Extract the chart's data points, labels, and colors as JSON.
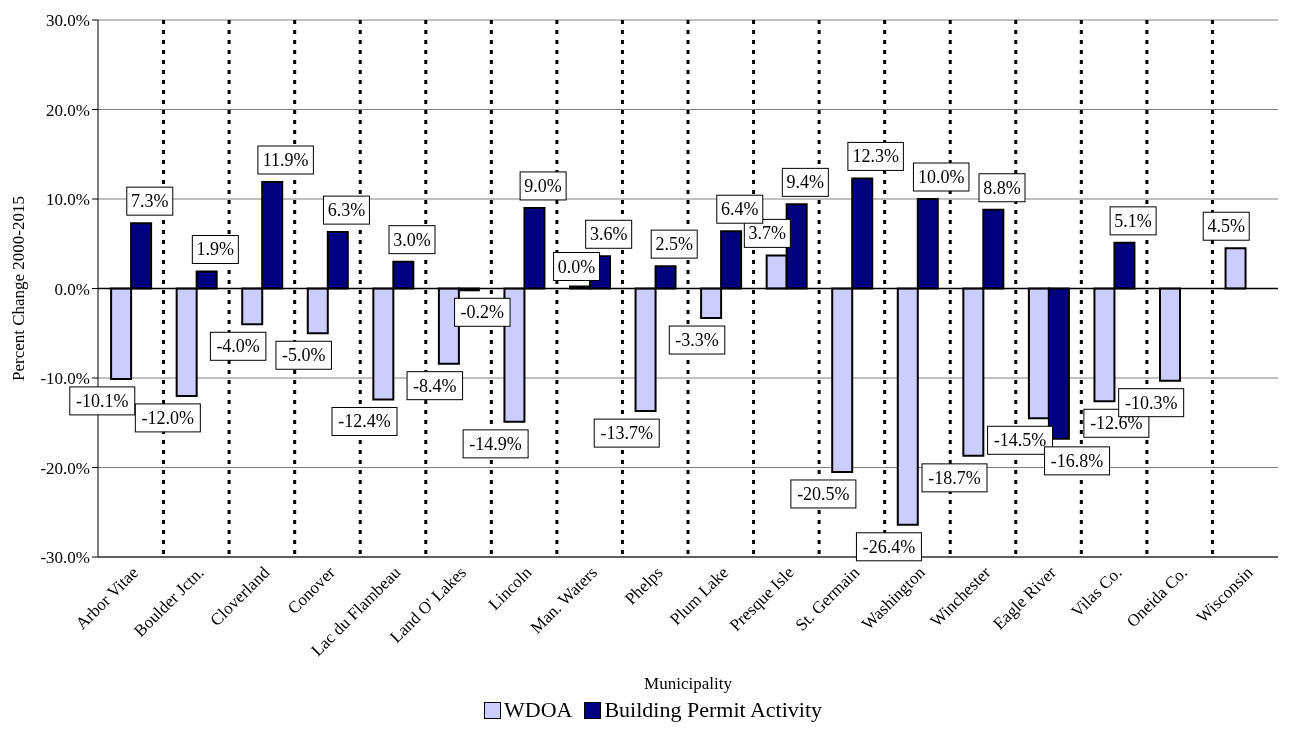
{
  "chart_data": {
    "type": "bar",
    "xlabel": "Municipality",
    "ylabel": "Percent Change 2000-2015",
    "categories": [
      "Arbor Vitae",
      "Boulder Jctn.",
      "Cloverland",
      "Conover",
      "Lac du Flambeau",
      "Land O' Lakes",
      "Lincoln",
      "Man. Waters",
      "Phelps",
      "Plum Lake",
      "Presque Isle",
      "St. Germain",
      "Washington",
      "Winchester",
      "Eagle River",
      "Vilas Co.",
      "Oneida Co.",
      "Wisconsin"
    ],
    "series": [
      {
        "name": "WDOA",
        "color": "#ccccff",
        "values": [
          -10.1,
          -12.0,
          -4.0,
          -5.0,
          -12.4,
          -8.4,
          -14.9,
          0.0,
          -13.7,
          -3.3,
          3.7,
          -20.5,
          -26.4,
          -18.7,
          -14.5,
          -12.6,
          -10.3,
          4.5
        ],
        "value_labels": [
          "-10.1%",
          "-12.0%",
          "-4.0%",
          "-5.0%",
          "-12.4%",
          "-8.4%",
          "-14.9%",
          "0.0%",
          "-13.7%",
          "-3.3%",
          "3.7%",
          "-20.5%",
          "-26.4%",
          "-18.7%",
          "-14.5%",
          "-12.6%",
          "-10.3%",
          "4.5%"
        ]
      },
      {
        "name": "Building Permit Activity",
        "color": "#000080",
        "values": [
          7.3,
          1.9,
          11.9,
          6.3,
          3.0,
          -0.2,
          9.0,
          3.6,
          2.5,
          6.4,
          9.4,
          12.3,
          10.0,
          8.8,
          -16.8,
          5.1,
          null,
          null
        ],
        "value_labels": [
          "7.3%",
          "1.9%",
          "11.9%",
          "6.3%",
          "3.0%",
          "-0.2%",
          "9.0%",
          "3.6%",
          "2.5%",
          "6.4%",
          "9.4%",
          "12.3%",
          "10.0%",
          "8.8%",
          "-16.8%",
          "5.1%",
          null,
          null
        ]
      }
    ],
    "ylim": [
      -30,
      30
    ],
    "yticks": [
      {
        "value": -30,
        "label": "-30.0%"
      },
      {
        "value": -20,
        "label": "-20.0%"
      },
      {
        "value": -10,
        "label": "-10.0%"
      },
      {
        "value": 0,
        "label": "0.0%"
      },
      {
        "value": 10,
        "label": "10.0%"
      },
      {
        "value": 20,
        "label": "20.0%"
      },
      {
        "value": 30,
        "label": "30.0%"
      }
    ],
    "grid": true,
    "legend": "bottom"
  }
}
